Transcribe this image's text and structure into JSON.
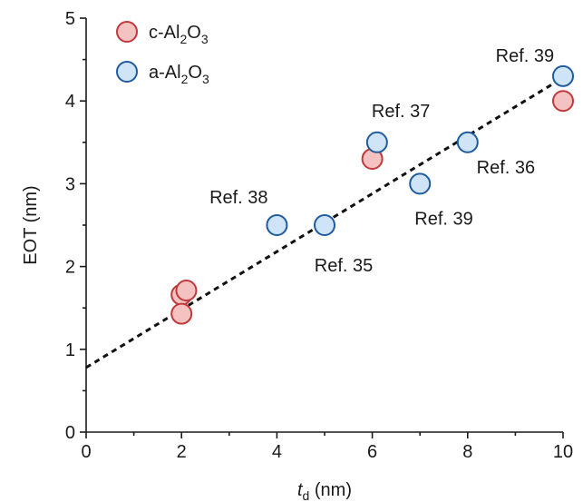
{
  "chart_data": {
    "type": "scatter",
    "xlabel": {
      "var": "t",
      "sub": "d",
      "unit": " (nm)"
    },
    "ylabel": "EOT (nm)",
    "xlim": [
      0,
      10
    ],
    "ylim": [
      0,
      5
    ],
    "xticks": [
      0,
      2,
      4,
      6,
      8,
      10
    ],
    "yticks": [
      0,
      1,
      2,
      3,
      4,
      5
    ],
    "xticks_minor": [
      1,
      3,
      5,
      7,
      9
    ],
    "yticks_minor": [
      0.5,
      1.5,
      2.5,
      3.5,
      4.5
    ],
    "grid": false,
    "legend_position": "top-left",
    "series": [
      {
        "name": {
          "pre": "c-Al",
          "sub1": "2",
          "mid": "O",
          "sub2": "3"
        },
        "fill": "#f4c2c0",
        "stroke": "#c0393b",
        "points": [
          {
            "x": 2.0,
            "y": 1.66
          },
          {
            "x": 2.1,
            "y": 1.71
          },
          {
            "x": 2.0,
            "y": 1.43
          },
          {
            "x": 6.0,
            "y": 3.3
          },
          {
            "x": 10.0,
            "y": 4.0
          }
        ]
      },
      {
        "name": {
          "pre": "a-Al",
          "sub1": "2",
          "mid": "O",
          "sub2": "3"
        },
        "fill": "#cfe4f7",
        "stroke": "#1f5c9e",
        "points": [
          {
            "x": 4.0,
            "y": 2.5
          },
          {
            "x": 5.0,
            "y": 2.5
          },
          {
            "x": 6.1,
            "y": 3.5
          },
          {
            "x": 7.0,
            "y": 3.0
          },
          {
            "x": 8.0,
            "y": 3.5
          },
          {
            "x": 10.0,
            "y": 4.3
          }
        ]
      }
    ],
    "fit_line": {
      "x": [
        0,
        10
      ],
      "y": [
        0.78,
        4.28
      ],
      "style": "dashed",
      "color": "#111111"
    },
    "annotations": [
      {
        "text": "Ref. 39",
        "x": 9.2,
        "y": 4.55
      },
      {
        "text": "Ref. 37",
        "x": 6.6,
        "y": 3.88
      },
      {
        "text": "Ref. 36",
        "x": 8.8,
        "y": 3.2
      },
      {
        "text": "Ref. 38",
        "x": 3.2,
        "y": 2.84
      },
      {
        "text": "Ref. 39",
        "x": 7.5,
        "y": 2.58
      },
      {
        "text": "Ref. 35",
        "x": 5.4,
        "y": 2.02
      }
    ]
  }
}
